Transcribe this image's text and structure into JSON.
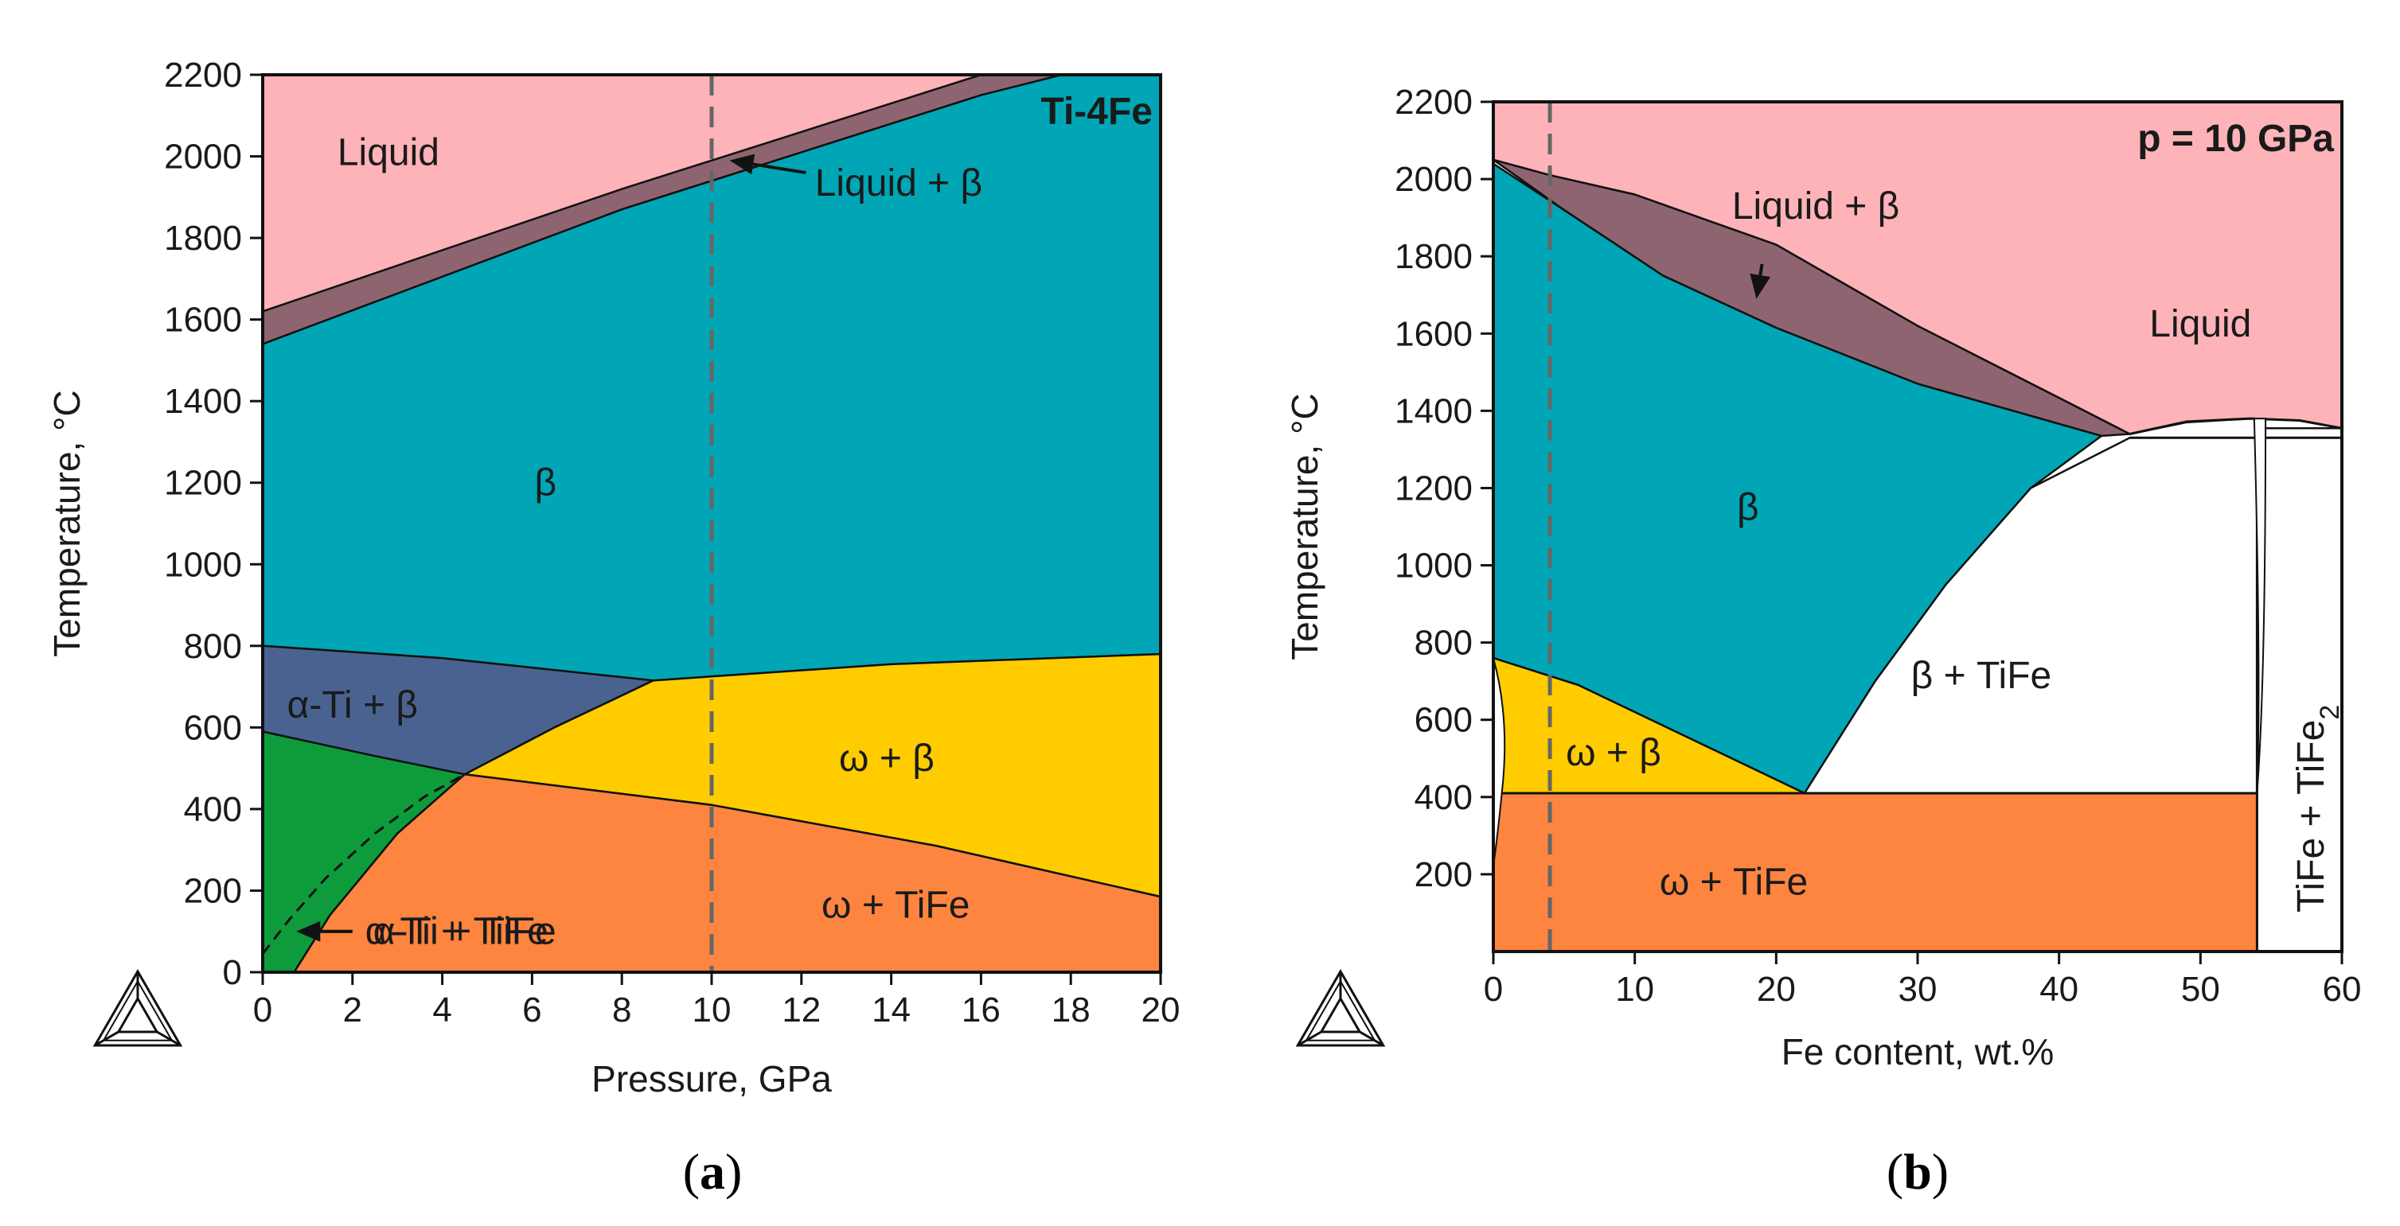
{
  "colors": {
    "liquid": "#fdb3b8",
    "liquid_beta": "#8f6471",
    "beta": "#00a6b5",
    "alpha_beta": "#4a6290",
    "omega_beta": "#ffcc00",
    "omega_tife": "#fd8540",
    "alpha_tife": "#0d9b3c",
    "beta_tife": "#ffffff",
    "tife_tife2": "#ffffff",
    "dashed_line": "#666666"
  },
  "chart_data": [
    {
      "type": "phase_diagram",
      "panel": "a",
      "caption_letter": "a",
      "annotation": "Ti-4Fe",
      "xlabel": "Pressure, GPa",
      "ylabel": "Temperature, °C",
      "xlim": [
        0,
        20
      ],
      "ylim": [
        0,
        2200
      ],
      "xticks": [
        0,
        2,
        4,
        6,
        8,
        10,
        12,
        14,
        16,
        18,
        20
      ],
      "yticks": [
        0,
        200,
        400,
        600,
        800,
        1000,
        1200,
        1400,
        1600,
        1800,
        2000,
        2200
      ],
      "guide_line": {
        "x": 10
      },
      "regions": [
        {
          "label": "Liquid",
          "color_key": "liquid",
          "label_at": [
            2.8,
            2010
          ],
          "points": [
            [
              0,
              1620
            ],
            [
              16,
              2200
            ],
            [
              0,
              2200
            ]
          ]
        },
        {
          "label": "Liquid + β",
          "color_key": "liquid_beta",
          "points": [
            [
              0,
              1540
            ],
            [
              8,
              1870
            ],
            [
              16,
              2150
            ],
            [
              17.8,
              2200
            ],
            [
              16,
              2200
            ],
            [
              8,
              1920
            ],
            [
              0,
              1620
            ]
          ]
        },
        {
          "label": "β",
          "color_key": "beta",
          "label_at": [
            6.3,
            1200
          ],
          "points": [
            [
              0,
              800
            ],
            [
              4,
              770
            ],
            [
              8.7,
              715
            ],
            [
              10,
              725
            ],
            [
              14,
              755
            ],
            [
              20,
              780
            ],
            [
              20,
              2200
            ],
            [
              17.8,
              2200
            ],
            [
              16,
              2150
            ],
            [
              8,
              1870
            ],
            [
              0,
              1540
            ]
          ]
        },
        {
          "label": "α-Ti + β",
          "color_key": "alpha_beta",
          "label_at": [
            2.0,
            655
          ],
          "points": [
            [
              0,
              590
            ],
            [
              2.5,
              530
            ],
            [
              4.5,
              485
            ],
            [
              6.5,
              600
            ],
            [
              8.7,
              715
            ],
            [
              4,
              770
            ],
            [
              0,
              800
            ]
          ]
        },
        {
          "label": "ω + β",
          "color_key": "omega_beta",
          "label_at": [
            13.9,
            525
          ],
          "points": [
            [
              4.5,
              485
            ],
            [
              10,
              410
            ],
            [
              15,
              310
            ],
            [
              20,
              185
            ],
            [
              20,
              780
            ],
            [
              14,
              755
            ],
            [
              10,
              725
            ],
            [
              8.7,
              715
            ],
            [
              6.5,
              600
            ]
          ]
        },
        {
          "label": "α-Ti + TiFe",
          "color_key": "alpha_tife",
          "label_at": [
            4.5,
            100
          ],
          "points": [
            [
              0,
              0
            ],
            [
              0.7,
              0
            ],
            [
              1.5,
              140
            ],
            [
              3,
              340
            ],
            [
              4.5,
              485
            ],
            [
              2.5,
              530
            ],
            [
              0,
              590
            ]
          ]
        },
        {
          "label": "ω + TiFe",
          "color_key": "omega_tife",
          "label_at": [
            14.1,
            165
          ],
          "points": [
            [
              0.7,
              0
            ],
            [
              20,
              0
            ],
            [
              20,
              185
            ],
            [
              15,
              310
            ],
            [
              10,
              410
            ],
            [
              4.5,
              485
            ],
            [
              3,
              340
            ],
            [
              1.5,
              140
            ]
          ]
        }
      ],
      "dashed_curve": [
        [
          0,
          45
        ],
        [
          0.6,
          130
        ],
        [
          1.4,
          230
        ],
        [
          2.5,
          340
        ],
        [
          3.6,
          430
        ],
        [
          4.5,
          485
        ]
      ],
      "arrows": [
        {
          "label": "Liquid + β",
          "tail": [
            12.1,
            1960
          ],
          "head": [
            10.4,
            1990
          ],
          "label_at": [
            12.3,
            1935
          ]
        },
        {
          "label": "α-Ti + TiFe",
          "tail": [
            2.0,
            100
          ],
          "head": [
            0.75,
            100
          ]
        }
      ]
    },
    {
      "type": "phase_diagram",
      "panel": "b",
      "caption_letter": "b",
      "annotation": "p = 10 GPa",
      "xlabel": "Fe content, wt.%",
      "ylabel": "Temperature, °C",
      "xlim": [
        0,
        60
      ],
      "ylim": [
        0,
        2200
      ],
      "xticks": [
        0,
        10,
        20,
        30,
        40,
        50,
        60
      ],
      "yticks": [
        200,
        400,
        600,
        800,
        1000,
        1200,
        1400,
        1600,
        1800,
        2000,
        2200
      ],
      "guide_line": {
        "x": 4
      },
      "regions": [
        {
          "label": "Liquid",
          "color_key": "liquid",
          "label_at": [
            50,
            1625
          ],
          "points": [
            [
              0,
              2200
            ],
            [
              60,
              2200
            ],
            [
              60,
              1355
            ],
            [
              57,
              1375
            ],
            [
              53.5,
              1380
            ],
            [
              49,
              1370
            ],
            [
              45,
              1340
            ],
            [
              41,
              1415
            ],
            [
              30,
              1620
            ],
            [
              20,
              1830
            ],
            [
              10,
              1960
            ],
            [
              4,
              2010
            ],
            [
              0,
              2050
            ]
          ]
        },
        {
          "label": "Liquid + β",
          "color_key": "liquid_beta",
          "label_at": [
            22.8,
            1930
          ],
          "points": [
            [
              0,
              2050
            ],
            [
              4,
              2010
            ],
            [
              10,
              1960
            ],
            [
              20,
              1830
            ],
            [
              30,
              1620
            ],
            [
              41,
              1415
            ],
            [
              45,
              1340
            ],
            [
              43,
              1335
            ],
            [
              30,
              1470
            ],
            [
              20,
              1615
            ],
            [
              12,
              1750
            ],
            [
              5,
              1920
            ]
          ]
        },
        {
          "label": "β",
          "color_key": "beta",
          "label_at": [
            18,
            1150
          ],
          "points": [
            [
              0,
              2040
            ],
            [
              5,
              1920
            ],
            [
              12,
              1750
            ],
            [
              20,
              1615
            ],
            [
              30,
              1470
            ],
            [
              43,
              1335
            ],
            [
              38,
              1200
            ],
            [
              32,
              950
            ],
            [
              27,
              700
            ],
            [
              22,
              410
            ],
            [
              14,
              550
            ],
            [
              6,
              690
            ],
            [
              0,
              760
            ]
          ]
        },
        {
          "label": "β + TiFe",
          "color_key": "beta_tife",
          "label_at": [
            34.5,
            715
          ],
          "points": [
            [
              22,
              410
            ],
            [
              54,
              410
            ],
            [
              54,
              1330
            ],
            [
              45,
              1330
            ],
            [
              38,
              1200
            ],
            [
              32,
              950
            ],
            [
              27,
              700
            ]
          ]
        },
        {
          "label": "ω + β",
          "color_key": "omega_beta",
          "label_at": [
            8.5,
            515
          ],
          "points": [
            [
              0,
              760
            ],
            [
              6,
              690
            ],
            [
              14,
              550
            ],
            [
              22,
              410
            ],
            [
              0,
              410
            ]
          ]
        },
        {
          "label": "ω + TiFe",
          "color_key": "omega_tife",
          "label_at": [
            17,
            180
          ],
          "points": [
            [
              0,
              0
            ],
            [
              54,
              0
            ],
            [
              54,
              410
            ],
            [
              0,
              410
            ]
          ]
        },
        {
          "label": "TiFe + TiFe₂",
          "color_key": "tife_tife2",
          "label_at": [
            57.8,
            370
          ],
          "points": [
            [
              54,
              0
            ],
            [
              60,
              0
            ],
            [
              60,
              1355
            ],
            [
              54,
              1355
            ]
          ]
        }
      ],
      "boundary_lines": [
        [
          [
            45,
            1340
          ],
          [
            49,
            1372
          ],
          [
            53.5,
            1380
          ],
          [
            57,
            1375
          ],
          [
            60,
            1355
          ]
        ],
        [
          [
            45,
            1330
          ],
          [
            60,
            1330
          ]
        ],
        [
          [
            0,
            410
          ],
          [
            54,
            410
          ]
        ],
        [
          [
            54,
            0
          ],
          [
            54,
            1330
          ]
        ]
      ],
      "arrows": [
        {
          "label": "Liquid + β",
          "tail": [
            19,
            1780
          ],
          "head": [
            18.6,
            1690
          ],
          "label_at": [
            22.8,
            1930
          ]
        }
      ]
    }
  ]
}
